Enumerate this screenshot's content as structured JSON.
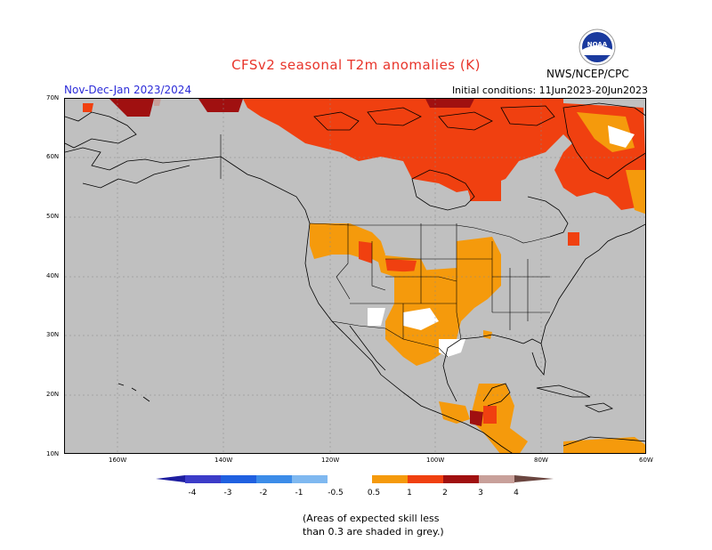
{
  "header": {
    "title": "CFSv2 seasonal T2m anomalies (K)",
    "season": "Nov-Dec-Jan 2023/2024",
    "initial_conditions": "Initial conditions: 11Jun2023-20Jun2023",
    "agency": "NWS/NCEP/CPC",
    "logo_text": "NOAA"
  },
  "map": {
    "lat_labels": [
      "70N",
      "60N",
      "50N",
      "40N",
      "30N",
      "20N",
      "10N"
    ],
    "lon_labels": [
      "160W",
      "140W",
      "120W",
      "100W",
      "80W",
      "60W"
    ],
    "background_color": "#c0c0c0"
  },
  "legend": {
    "ticks": [
      "-4",
      "-3",
      "-2",
      "-1",
      "-0.5",
      "0.5",
      "1",
      "2",
      "3",
      "4"
    ],
    "colors": {
      "lt_-4": "#1e1ea0",
      "-4_-3": "#3c3cc8",
      "-3_-2": "#2060e0",
      "-2_-1": "#3c8ce8",
      "-1_-0.5": "#7fb8f0",
      "neutral": "#ffffff",
      "0.5_1": "#f59a0c",
      "1_2": "#f04010",
      "2_3": "#a01010",
      "3_4": "#c8a09a",
      "gt_4": "#6b4640"
    }
  },
  "note": {
    "line1": "(Areas of expected skill less",
    "line2": "than 0.3 are shaded in grey.)"
  }
}
